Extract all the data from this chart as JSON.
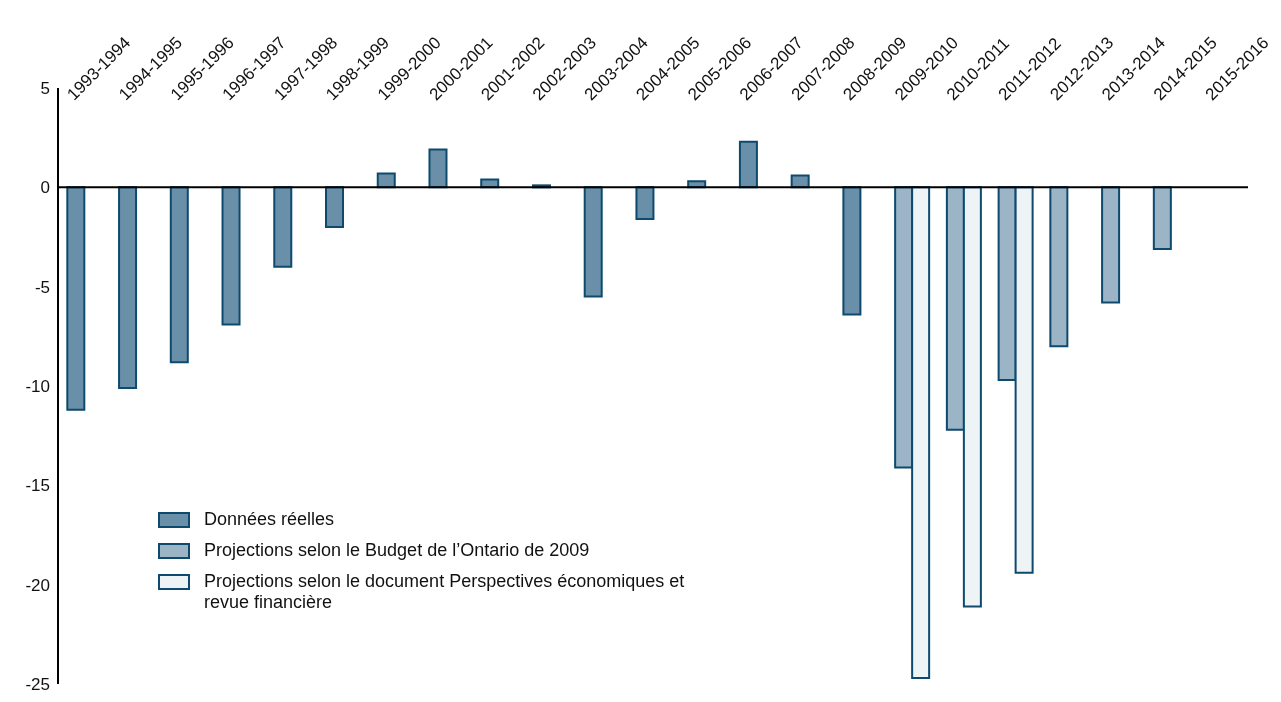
{
  "chart_data": {
    "type": "bar",
    "categories": [
      "1993-1994",
      "1994-1995",
      "1995-1996",
      "1996-1997",
      "1997-1998",
      "1998-1999",
      "1999-2000",
      "2000-2001",
      "2001-2002",
      "2002-2003",
      "2003-2004",
      "2004-2005",
      "2005-2006",
      "2006-2007",
      "2007-2008",
      "2008-2009",
      "2009-2010",
      "2010-2011",
      "2011-2012",
      "2012-2013",
      "2013-2014",
      "2014-2015",
      "2015-2016"
    ],
    "series": [
      {
        "name": "Données réelles",
        "color": "#6a8fa8",
        "values": [
          -11.2,
          -10.1,
          -8.8,
          -6.9,
          -4.0,
          -2.0,
          0.7,
          1.9,
          0.4,
          0.1,
          -5.5,
          -1.6,
          0.3,
          2.3,
          0.6,
          -6.4,
          null,
          null,
          null,
          null,
          null,
          null,
          null
        ]
      },
      {
        "name": "Projections selon le Budget de l’Ontario de 2009",
        "color": "#9bb5c6",
        "values": [
          null,
          null,
          null,
          null,
          null,
          null,
          null,
          null,
          null,
          null,
          null,
          null,
          null,
          null,
          null,
          null,
          -14.1,
          -12.2,
          -9.7,
          -8.0,
          -5.8,
          -3.1,
          null
        ]
      },
      {
        "name": "Projections selon le document Perspectives économiques et revue financière",
        "color": "#eef3f6",
        "values": [
          null,
          null,
          null,
          null,
          null,
          null,
          null,
          null,
          null,
          null,
          null,
          null,
          null,
          null,
          null,
          null,
          -24.7,
          -21.1,
          -19.4,
          null,
          null,
          null,
          null
        ]
      }
    ],
    "ylim": [
      -25,
      5
    ],
    "yticks": [
      -25,
      -20,
      -15,
      -10,
      -5,
      0,
      5
    ],
    "legend": "bottom left"
  }
}
